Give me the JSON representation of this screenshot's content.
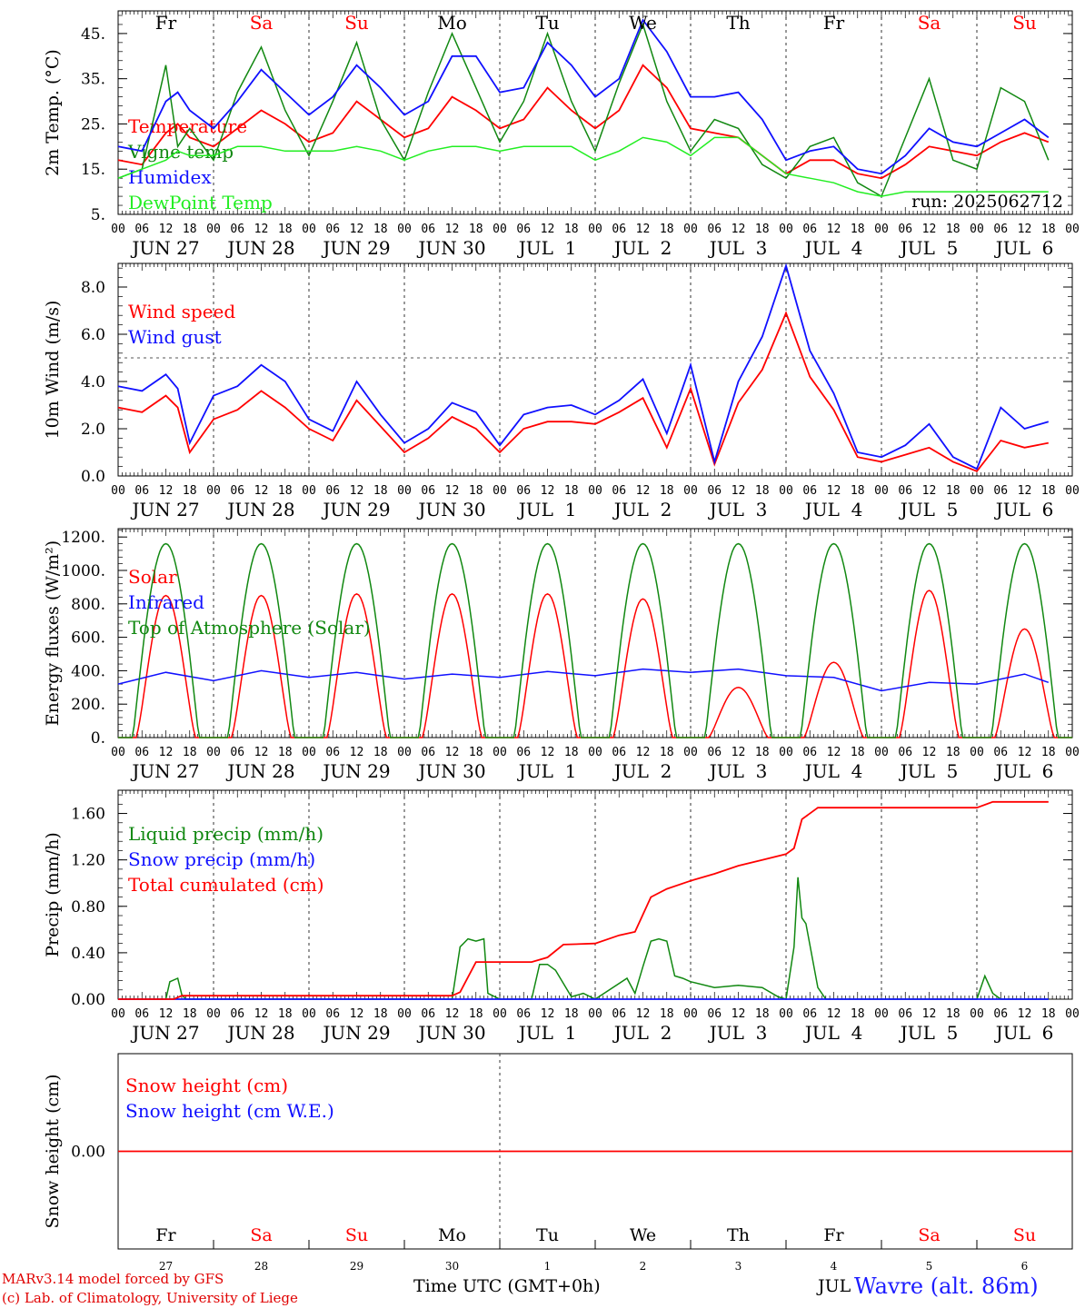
{
  "colors": {
    "red": "#ff0000",
    "green": "#118811",
    "blue": "#1010ff",
    "lightgreen": "#22ee22",
    "axis": "#000000",
    "weekend": "#ff0000"
  },
  "run_label": "run: 2025062712",
  "hour_ticks": [
    "00",
    "06",
    "12",
    "18"
  ],
  "day_dates": [
    "JUN 27",
    "JUN 28",
    "JUN 29",
    "JUN 30",
    "JUL  1",
    "JUL  2",
    "JUL  3",
    "JUL  4",
    "JUL  5",
    "JUL  6"
  ],
  "weekdays": [
    {
      "name": "Fr",
      "weekend": false
    },
    {
      "name": "Sa",
      "weekend": true
    },
    {
      "name": "Su",
      "weekend": true
    },
    {
      "name": "Mo",
      "weekend": false
    },
    {
      "name": "Tu",
      "weekend": false
    },
    {
      "name": "We",
      "weekend": false
    },
    {
      "name": "Th",
      "weekend": false
    },
    {
      "name": "Fr",
      "weekend": false
    },
    {
      "name": "Sa",
      "weekend": true
    },
    {
      "name": "Su",
      "weekend": true
    }
  ],
  "footer": {
    "model": "MARv3.14 model forced by GFS",
    "copyright": "(c) Lab. of Climatology, University of Liege",
    "xlabel": "Time UTC (GMT+0h)",
    "month": "JUL",
    "station": "Wavre (alt. 86m)",
    "day_numbers": [
      "27",
      "28",
      "29",
      "30",
      "1",
      "2",
      "3",
      "4",
      "5",
      "6"
    ]
  },
  "chart_data": [
    {
      "type": "line",
      "ylabel": "2m Temp. (°C)",
      "ylim": [
        5,
        50
      ],
      "yticks": [
        5,
        15,
        25,
        35,
        45
      ],
      "ytick_labels": [
        "5.",
        "15.",
        "25.",
        "35.",
        "45."
      ],
      "x_unit": "hours since JUN 27 00 UTC",
      "series": [
        {
          "name": "Temperature",
          "color": "red",
          "x": [
            0,
            6,
            12,
            15,
            18,
            24,
            30,
            36,
            42,
            48,
            54,
            60,
            66,
            72,
            78,
            84,
            90,
            96,
            102,
            108,
            114,
            120,
            126,
            132,
            138,
            144,
            150,
            156,
            162,
            168,
            174,
            180,
            186,
            192,
            198,
            204,
            210,
            216,
            222,
            228,
            234
          ],
          "values": [
            17,
            16,
            23,
            25,
            22,
            20,
            24,
            28,
            25,
            21,
            23,
            30,
            26,
            22,
            24,
            31,
            28,
            24,
            26,
            33,
            28,
            24,
            28,
            38,
            33,
            24,
            23,
            22,
            18,
            14,
            17,
            17,
            14,
            13,
            16,
            20,
            19,
            18,
            21,
            23,
            21
          ]
        },
        {
          "name": "Vigne temp",
          "color": "green",
          "x": [
            0,
            6,
            12,
            15,
            18,
            24,
            30,
            36,
            42,
            48,
            54,
            60,
            66,
            72,
            78,
            84,
            90,
            96,
            102,
            108,
            114,
            120,
            126,
            132,
            138,
            144,
            150,
            156,
            162,
            168,
            174,
            180,
            186,
            192,
            198,
            204,
            210,
            216,
            222,
            228,
            234
          ],
          "values": [
            13,
            15,
            38,
            20,
            24,
            17,
            32,
            42,
            28,
            18,
            30,
            43,
            26,
            17,
            32,
            45,
            33,
            21,
            30,
            45,
            30,
            19,
            34,
            47,
            30,
            19,
            26,
            24,
            16,
            13,
            20,
            22,
            12,
            9,
            22,
            35,
            17,
            15,
            33,
            30,
            17
          ]
        },
        {
          "name": "Humidex",
          "color": "blue",
          "x": [
            0,
            6,
            12,
            15,
            18,
            24,
            30,
            36,
            42,
            48,
            54,
            60,
            66,
            72,
            78,
            84,
            90,
            96,
            102,
            108,
            114,
            120,
            126,
            132,
            138,
            144,
            150,
            156,
            162,
            168,
            174,
            180,
            186,
            192,
            198,
            204,
            210,
            216,
            222,
            228,
            234
          ],
          "values": [
            20,
            19,
            30,
            32,
            28,
            24,
            30,
            37,
            32,
            27,
            31,
            38,
            33,
            27,
            30,
            40,
            40,
            32,
            33,
            43,
            38,
            31,
            35,
            48,
            41,
            31,
            31,
            32,
            26,
            17,
            19,
            20,
            15,
            14,
            18,
            24,
            21,
            20,
            23,
            26,
            22
          ]
        },
        {
          "name": "DewPoint Temp",
          "color": "lightgreen",
          "x": [
            0,
            6,
            12,
            15,
            18,
            24,
            30,
            36,
            42,
            48,
            54,
            60,
            66,
            72,
            78,
            84,
            90,
            96,
            102,
            108,
            114,
            120,
            126,
            132,
            138,
            144,
            150,
            156,
            162,
            168,
            174,
            180,
            186,
            192,
            198,
            204,
            210,
            216,
            222,
            228,
            234
          ],
          "values": [
            13,
            15,
            17,
            19,
            18,
            18,
            20,
            20,
            19,
            19,
            19,
            20,
            19,
            17,
            19,
            20,
            20,
            19,
            20,
            20,
            20,
            17,
            19,
            22,
            21,
            18,
            22,
            22,
            18,
            14,
            13,
            12,
            10,
            9,
            10,
            10,
            10,
            10,
            10,
            10,
            10
          ]
        }
      ]
    },
    {
      "type": "line",
      "ylabel": "10m Wind (m/s)",
      "ylim": [
        0,
        9
      ],
      "yticks": [
        0,
        2,
        4,
        6,
        8
      ],
      "ytick_labels": [
        "0.0",
        "2.0",
        "4.0",
        "6.0",
        "8.0"
      ],
      "reference_line": 5,
      "x_unit": "hours since JUN 27 00 UTC",
      "series": [
        {
          "name": "Wind speed",
          "color": "red",
          "x": [
            0,
            6,
            12,
            15,
            18,
            24,
            30,
            36,
            42,
            48,
            54,
            60,
            66,
            72,
            78,
            84,
            90,
            96,
            102,
            108,
            114,
            120,
            126,
            132,
            138,
            144,
            150,
            156,
            162,
            168,
            174,
            180,
            186,
            192,
            198,
            204,
            210,
            216,
            222,
            228,
            234
          ],
          "values": [
            2.9,
            2.7,
            3.4,
            2.9,
            1.0,
            2.4,
            2.8,
            3.6,
            2.9,
            2.0,
            1.5,
            3.2,
            2.1,
            1.0,
            1.6,
            2.5,
            2.0,
            1.0,
            2.0,
            2.3,
            2.3,
            2.2,
            2.7,
            3.3,
            1.2,
            3.7,
            0.5,
            3.1,
            4.5,
            6.9,
            4.2,
            2.8,
            0.8,
            0.6,
            0.9,
            1.2,
            0.6,
            0.2,
            1.5,
            1.2,
            1.4
          ]
        },
        {
          "name": "Wind gust",
          "color": "blue",
          "x": [
            0,
            6,
            12,
            15,
            18,
            24,
            30,
            36,
            42,
            48,
            54,
            60,
            66,
            72,
            78,
            84,
            90,
            96,
            102,
            108,
            114,
            120,
            126,
            132,
            138,
            144,
            150,
            156,
            162,
            168,
            174,
            180,
            186,
            192,
            198,
            204,
            210,
            216,
            222,
            228,
            234
          ],
          "values": [
            3.8,
            3.6,
            4.3,
            3.7,
            1.4,
            3.4,
            3.8,
            4.7,
            4.0,
            2.4,
            1.9,
            4.0,
            2.6,
            1.4,
            2.0,
            3.1,
            2.7,
            1.3,
            2.6,
            2.9,
            3.0,
            2.6,
            3.2,
            4.1,
            1.8,
            4.7,
            0.6,
            4.0,
            5.9,
            8.9,
            5.3,
            3.5,
            1.0,
            0.8,
            1.3,
            2.2,
            0.8,
            0.3,
            2.9,
            2.0,
            2.3
          ]
        }
      ]
    },
    {
      "type": "line",
      "ylabel": "Energy fluxes (W/m²)",
      "ylim": [
        0,
        1250
      ],
      "yticks": [
        0,
        200,
        400,
        600,
        800,
        1000,
        1200
      ],
      "ytick_labels": [
        "0.",
        "200.",
        "400.",
        "600.",
        "800.",
        "1000.",
        "1200."
      ],
      "x_unit": "hours since JUN 27 00 UTC",
      "series": [
        {
          "name": "Solar",
          "color": "red",
          "peaks": [
            850,
            850,
            860,
            860,
            860,
            830,
            300,
            450,
            880,
            650
          ]
        },
        {
          "name": "Infrared",
          "color": "blue",
          "x": [
            0,
            12,
            24,
            36,
            48,
            60,
            72,
            84,
            96,
            108,
            120,
            132,
            144,
            156,
            168,
            180,
            192,
            204,
            216,
            228,
            234
          ],
          "values": [
            320,
            390,
            340,
            400,
            360,
            390,
            350,
            380,
            360,
            395,
            370,
            410,
            390,
            410,
            370,
            360,
            280,
            330,
            320,
            380,
            330
          ]
        },
        {
          "name": "Top of Atmosphere (Solar)",
          "color": "green",
          "peak": 1160
        }
      ]
    },
    {
      "type": "line",
      "ylabel": "Precip (mm/h)",
      "ylim": [
        0,
        1.8
      ],
      "yticks": [
        0,
        0.4,
        0.8,
        1.2,
        1.6
      ],
      "ytick_labels": [
        "0.00",
        "0.40",
        "0.80",
        "1.20",
        "1.60"
      ],
      "x_unit": "hours since JUN 27 00 UTC",
      "series": [
        {
          "name": "Liquid precip (mm/h)",
          "color": "green",
          "x": [
            0,
            12,
            13,
            15,
            16,
            17,
            24,
            48,
            84,
            86,
            88,
            90,
            92,
            93,
            96,
            104,
            106,
            108,
            110,
            114,
            117,
            120,
            128,
            130,
            132,
            134,
            136,
            138,
            140,
            142,
            144,
            150,
            156,
            162,
            166,
            168,
            170,
            171,
            172,
            173,
            176,
            178,
            180,
            216,
            218,
            220,
            222,
            234
          ],
          "values": [
            0,
            0,
            0.15,
            0.18,
            0.04,
            0,
            0,
            0,
            0,
            0.45,
            0.52,
            0.5,
            0.52,
            0.05,
            0,
            0,
            0.3,
            0.3,
            0.25,
            0.02,
            0.05,
            0,
            0.18,
            0.05,
            0.28,
            0.5,
            0.52,
            0.5,
            0.2,
            0.18,
            0.15,
            0.1,
            0.12,
            0.1,
            0.02,
            0,
            0.45,
            1.05,
            0.7,
            0.65,
            0.1,
            0,
            0,
            0,
            0.2,
            0.05,
            0,
            0
          ]
        },
        {
          "name": "Snow precip (mm/h)",
          "color": "blue",
          "x": [
            0,
            234
          ],
          "values": [
            0,
            0
          ]
        },
        {
          "name": "Total cumulated (cm)",
          "color": "red",
          "x": [
            0,
            14,
            16,
            84,
            86,
            90,
            96,
            104,
            108,
            112,
            120,
            126,
            130,
            134,
            138,
            144,
            150,
            156,
            162,
            168,
            170,
            172,
            176,
            180,
            216,
            220,
            234
          ],
          "values": [
            0,
            0,
            0.03,
            0.03,
            0.06,
            0.32,
            0.32,
            0.32,
            0.36,
            0.47,
            0.48,
            0.55,
            0.58,
            0.88,
            0.95,
            1.02,
            1.08,
            1.15,
            1.2,
            1.25,
            1.3,
            1.55,
            1.65,
            1.65,
            1.65,
            1.7,
            1.7
          ]
        }
      ]
    },
    {
      "type": "line",
      "ylabel": "Snow height (cm)",
      "ylim": [
        -1,
        1
      ],
      "yticks": [
        0
      ],
      "ytick_labels": [
        "0.00"
      ],
      "series": [
        {
          "name": "Snow height (cm)",
          "color": "red",
          "x": [
            0,
            240
          ],
          "values": [
            0,
            0
          ]
        },
        {
          "name": "Snow height (cm W.E.)",
          "color": "blue"
        }
      ]
    }
  ]
}
